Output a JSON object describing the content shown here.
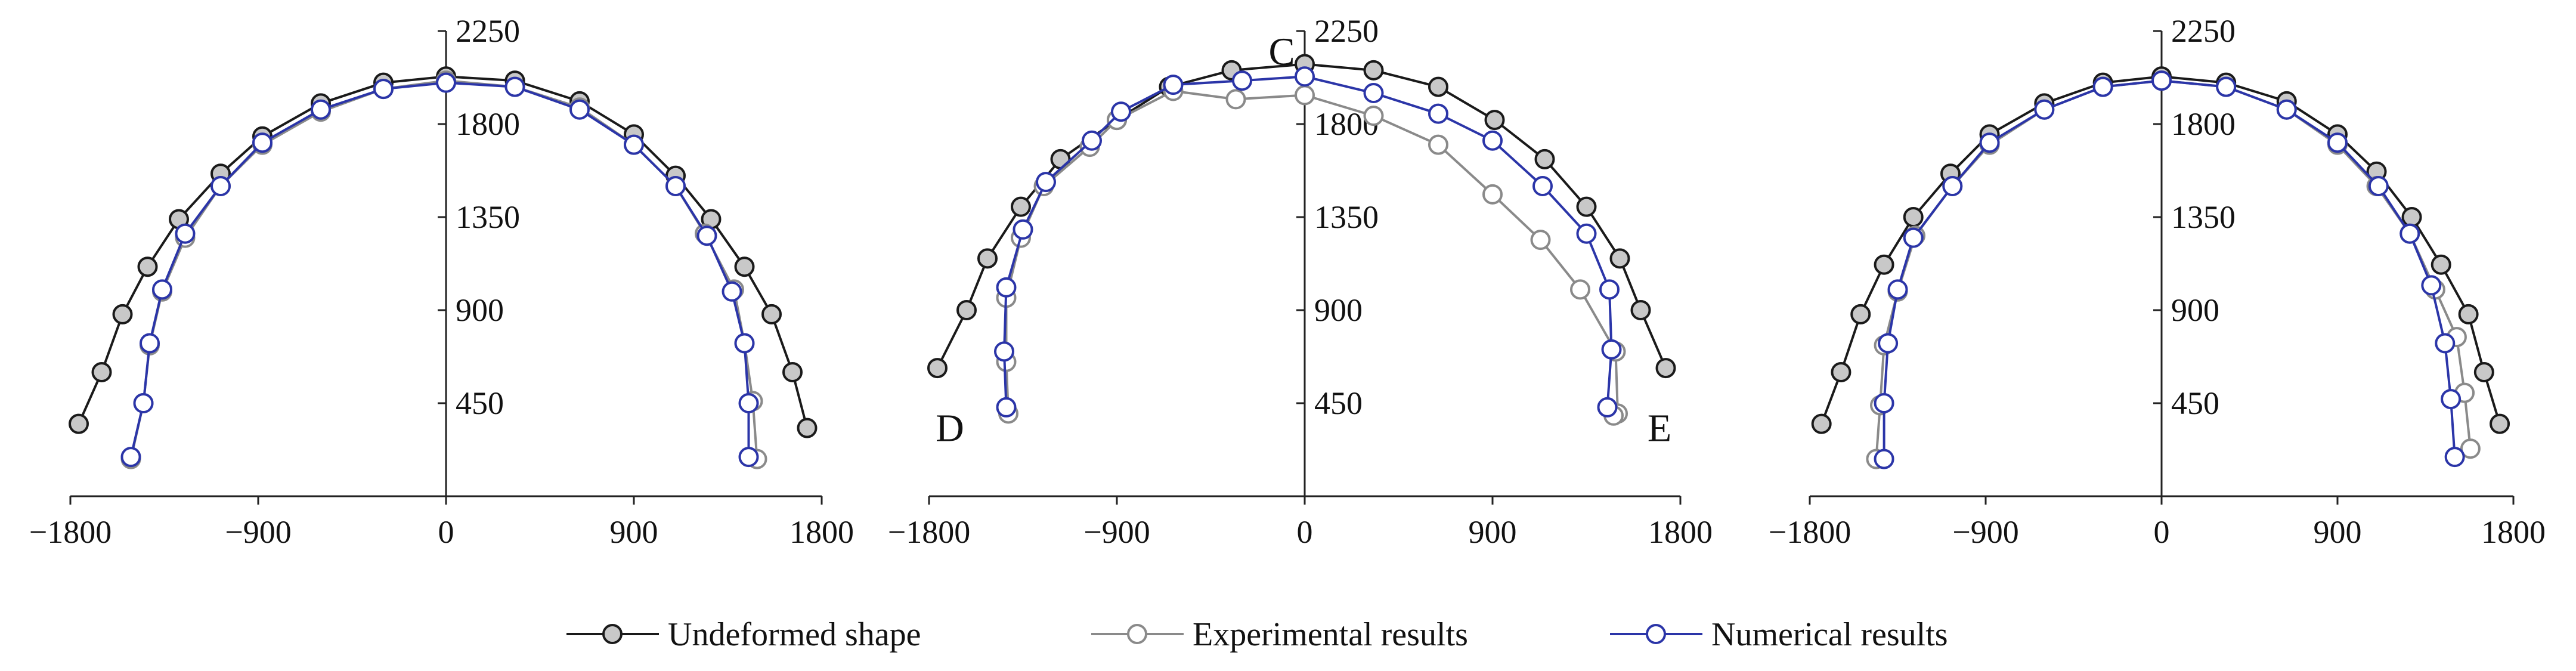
{
  "colors": {
    "undeformed": "#1a1a1a",
    "undeformed_fill": "#c8c8c8",
    "experimental": "#8a8a8a",
    "experimental_fill": "#ffffff",
    "numerical": "#2b35a8",
    "numerical_fill": "#ffffff",
    "axis": "#222222"
  },
  "legend": {
    "undeformed": "Undeformed shape",
    "experimental": "Experimental results",
    "numerical": "Numerical results"
  },
  "chart_data": [
    {
      "type": "line",
      "title": "",
      "xlabel": "",
      "ylabel": "",
      "xlim": [
        -1800,
        1800
      ],
      "ylim": [
        0,
        2250
      ],
      "xticks": [
        "−1800",
        "−900",
        "0",
        "900",
        "1800"
      ],
      "yticks": [
        "450",
        "900",
        "1350",
        "1800",
        "2250"
      ],
      "annotations": [],
      "series": [
        {
          "name": "Undeformed shape",
          "x": [
            -1760,
            -1650,
            -1550,
            -1430,
            -1280,
            -1080,
            -880,
            -600,
            -300,
            0,
            330,
            640,
            900,
            1100,
            1270,
            1430,
            1560,
            1660,
            1730
          ],
          "y": [
            350,
            600,
            880,
            1110,
            1340,
            1560,
            1740,
            1900,
            2000,
            2030,
            2010,
            1910,
            1750,
            1550,
            1340,
            1110,
            880,
            600,
            330
          ]
        },
        {
          "name": "Experimental results",
          "x": [
            -1510,
            -1450,
            -1420,
            -1360,
            -1250,
            -1080,
            -880,
            -600,
            -300,
            0,
            330,
            640,
            900,
            1100,
            1240,
            1380,
            1430,
            1470,
            1490
          ],
          "y": [
            180,
            450,
            730,
            990,
            1250,
            1500,
            1700,
            1860,
            1970,
            2010,
            1980,
            1880,
            1700,
            1500,
            1270,
            1000,
            740,
            460,
            180
          ]
        },
        {
          "name": "Numerical results",
          "x": [
            -1510,
            -1450,
            -1420,
            -1360,
            -1250,
            -1080,
            -880,
            -600,
            -300,
            0,
            330,
            640,
            900,
            1100,
            1250,
            1370,
            1430,
            1450,
            1450
          ],
          "y": [
            190,
            450,
            740,
            1000,
            1270,
            1500,
            1710,
            1870,
            1970,
            2000,
            1980,
            1870,
            1700,
            1500,
            1260,
            990,
            740,
            450,
            190
          ]
        }
      ]
    },
    {
      "type": "line",
      "title": "",
      "xlabel": "",
      "ylabel": "",
      "xlim": [
        -1800,
        1800
      ],
      "ylim": [
        0,
        2250
      ],
      "xticks": [
        "−1800",
        "−900",
        "0",
        "900",
        "1800"
      ],
      "yticks": [
        "450",
        "900",
        "1350",
        "1800",
        "2250"
      ],
      "annotations": [
        {
          "text": "C",
          "x": -110,
          "y": 2150
        },
        {
          "text": "D",
          "x": -1700,
          "y": 330
        },
        {
          "text": "E",
          "x": 1700,
          "y": 330
        }
      ],
      "series": [
        {
          "name": "Undeformed shape",
          "x": [
            -1760,
            -1620,
            -1520,
            -1360,
            -1170,
            -900,
            -650,
            -350,
            0,
            330,
            640,
            910,
            1150,
            1350,
            1510,
            1610,
            1730
          ],
          "y": [
            620,
            900,
            1150,
            1400,
            1630,
            1820,
            1980,
            2060,
            2090,
            2060,
            1980,
            1820,
            1630,
            1400,
            1150,
            900,
            620
          ]
        },
        {
          "name": "Experimental results",
          "x": [
            -1420,
            -1430,
            -1430,
            -1360,
            -1250,
            -1030,
            -900,
            -630,
            -330,
            0,
            330,
            640,
            900,
            1130,
            1320,
            1490,
            1500,
            1480
          ],
          "y": [
            400,
            650,
            960,
            1250,
            1500,
            1690,
            1820,
            1960,
            1920,
            1940,
            1840,
            1700,
            1460,
            1240,
            1000,
            700,
            400,
            390
          ]
        },
        {
          "name": "Numerical results",
          "x": [
            -1430,
            -1440,
            -1430,
            -1350,
            -1240,
            -1020,
            -880,
            -630,
            -300,
            0,
            330,
            640,
            900,
            1140,
            1350,
            1460,
            1470,
            1450
          ],
          "y": [
            430,
            700,
            1010,
            1290,
            1520,
            1720,
            1860,
            1990,
            2010,
            2030,
            1950,
            1850,
            1720,
            1500,
            1270,
            1000,
            710,
            430
          ]
        }
      ]
    },
    {
      "type": "line",
      "title": "",
      "xlabel": "",
      "ylabel": "",
      "xlim": [
        -1800,
        1800
      ],
      "ylim": [
        0,
        2250
      ],
      "xticks": [
        "−1800",
        "−900",
        "0",
        "900",
        "1800"
      ],
      "yticks": [
        "450",
        "900",
        "1350",
        "1800",
        "2250"
      ],
      "annotations": [],
      "series": [
        {
          "name": "Undeformed shape",
          "x": [
            -1740,
            -1640,
            -1540,
            -1420,
            -1270,
            -1080,
            -880,
            -600,
            -300,
            0,
            330,
            640,
            900,
            1100,
            1280,
            1430,
            1570,
            1650,
            1730
          ],
          "y": [
            350,
            600,
            880,
            1120,
            1350,
            1560,
            1750,
            1900,
            2000,
            2030,
            2000,
            1910,
            1750,
            1570,
            1350,
            1120,
            880,
            600,
            350
          ]
        },
        {
          "name": "Experimental results",
          "x": [
            -1460,
            -1440,
            -1420,
            -1350,
            -1260,
            -1070,
            -880,
            -600,
            -300,
            0,
            330,
            640,
            900,
            1100,
            1270,
            1400,
            1510,
            1550,
            1580
          ],
          "y": [
            180,
            440,
            730,
            990,
            1260,
            1500,
            1700,
            1870,
            1980,
            2010,
            1980,
            1870,
            1700,
            1500,
            1270,
            1000,
            770,
            500,
            230
          ]
        },
        {
          "name": "Numerical results",
          "x": [
            -1420,
            -1420,
            -1400,
            -1350,
            -1270,
            -1070,
            -880,
            -600,
            -300,
            0,
            330,
            640,
            900,
            1110,
            1270,
            1380,
            1450,
            1480,
            1500
          ],
          "y": [
            180,
            450,
            740,
            1000,
            1250,
            1500,
            1710,
            1870,
            1980,
            2010,
            1980,
            1870,
            1710,
            1500,
            1270,
            1020,
            740,
            470,
            190
          ]
        }
      ]
    }
  ]
}
